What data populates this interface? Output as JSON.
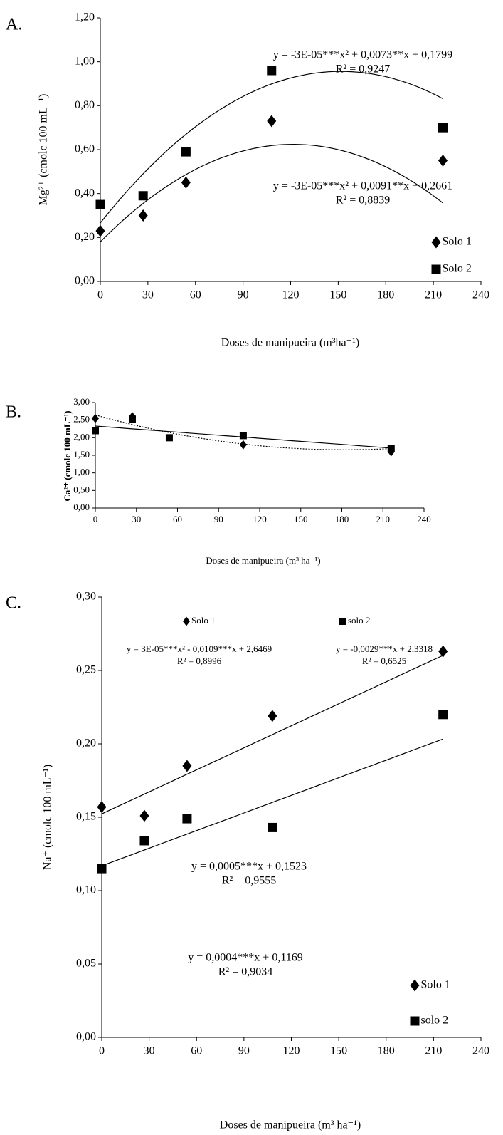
{
  "chart_data": [
    {
      "type": "scatter",
      "panel": "A.",
      "ylabel": "Mg²⁺ (cmolc 100 mL⁻¹)",
      "xlabel": "Doses de manipueira (m³ha⁻¹)",
      "x": [
        0,
        27,
        54,
        108,
        216
      ],
      "xlim": [
        0,
        240
      ],
      "xticks": [
        0,
        30,
        60,
        90,
        120,
        150,
        180,
        210,
        240
      ],
      "ylim": [
        0,
        1.2
      ],
      "yticks": [
        {
          "value": 0,
          "label": "0,00"
        },
        {
          "value": 0.2,
          "label": "0,20"
        },
        {
          "value": 0.4,
          "label": "0,40"
        },
        {
          "value": 0.6,
          "label": "0,60"
        },
        {
          "value": 0.8,
          "label": "0,80"
        },
        {
          "value": 1.0,
          "label": "1,00"
        },
        {
          "value": 1.2,
          "label": "1,20"
        }
      ],
      "series": [
        {
          "name": "Solo 1",
          "marker": "diamond",
          "color": "#000000",
          "values": [
            0.23,
            0.3,
            0.45,
            0.73,
            0.55
          ],
          "fit": [
            -3e-05,
            0.0073,
            0.1799
          ],
          "line_style": "solid",
          "equation": "y = -3E-05***x² + 0,0073**x + 0,1799",
          "r2": "R² = 0,9247"
        },
        {
          "name": "Solo 2",
          "marker": "square",
          "color": "#000000",
          "values": [
            0.35,
            0.39,
            0.59,
            0.96,
            0.7
          ],
          "fit": [
            -3e-05,
            0.0091,
            0.2661
          ],
          "line_style": "solid",
          "equation": "y = -3E-05***x² + 0,0091**x + 0,2661",
          "r2": "R² = 0,8839"
        }
      ]
    },
    {
      "type": "scatter",
      "panel": "B.",
      "ylabel": "Ca²⁺ (cmolc 100 mL⁻¹)",
      "xlabel": "Doses de manipueira (m³ ha⁻¹)",
      "x": [
        0,
        27,
        54,
        108,
        216
      ],
      "xlim": [
        0,
        240
      ],
      "xticks": [
        0,
        30,
        60,
        90,
        120,
        150,
        180,
        210,
        240
      ],
      "ylim": [
        0,
        3.0
      ],
      "yticks": [
        {
          "value": 0,
          "label": "0,00"
        },
        {
          "value": 0.5,
          "label": "0,50"
        },
        {
          "value": 1.0,
          "label": "1,00"
        },
        {
          "value": 1.5,
          "label": "1,50"
        },
        {
          "value": 2.0,
          "label": "2,00"
        },
        {
          "value": 2.5,
          "label": "2,50"
        },
        {
          "value": 3.0,
          "label": "3,00"
        }
      ],
      "series": [
        {
          "name": "Solo 1",
          "marker": "diamond",
          "color": "#000000",
          "values": [
            2.55,
            2.6,
            null,
            1.8,
            1.6
          ],
          "fit": [
            3e-05,
            -0.0109,
            2.6469
          ],
          "line_style": "dotted",
          "equation": "y = 3E-05***x² - 0,0109***x + 2,6469",
          "r2": "R² = 0,8996"
        },
        {
          "name": "solo 2",
          "marker": "square",
          "color": "#000000",
          "values": [
            2.2,
            2.53,
            2.0,
            2.06,
            1.7
          ],
          "fit": [
            -0.0029,
            2.3318
          ],
          "line_style": "solid",
          "equation": "y = -0,0029***x + 2,3318",
          "r2": "R² = 0,6525"
        }
      ]
    },
    {
      "type": "scatter",
      "panel": "C.",
      "ylabel": "Na⁺ (cmolc 100 mL⁻¹)",
      "xlabel": "Doses de manipueira (m³ ha⁻¹)",
      "x": [
        0,
        27,
        54,
        108,
        216
      ],
      "xlim": [
        0,
        240
      ],
      "xticks": [
        0,
        30,
        60,
        90,
        120,
        150,
        180,
        210,
        240
      ],
      "ylim": [
        0,
        0.3
      ],
      "yticks": [
        {
          "value": 0,
          "label": "0,00"
        },
        {
          "value": 0.05,
          "label": "0,05"
        },
        {
          "value": 0.1,
          "label": "0,10"
        },
        {
          "value": 0.15,
          "label": "0,15"
        },
        {
          "value": 0.2,
          "label": "0,20"
        },
        {
          "value": 0.25,
          "label": "0,25"
        },
        {
          "value": 0.3,
          "label": "0,30"
        }
      ],
      "series": [
        {
          "name": "Solo 1",
          "marker": "diamond",
          "color": "#000000",
          "values": [
            0.157,
            0.151,
            0.185,
            0.219,
            0.263
          ],
          "fit": [
            0.0005,
            0.1523
          ],
          "line_style": "solid",
          "equation": "y = 0,0005***x + 0,1523",
          "r2": "R² = 0,9555"
        },
        {
          "name": "solo 2",
          "marker": "square",
          "color": "#000000",
          "values": [
            0.115,
            0.134,
            0.149,
            0.143,
            0.22
          ],
          "fit": [
            0.0004,
            0.1169
          ],
          "line_style": "solid",
          "equation": "y = 0,0004***x + 0,1169",
          "r2": "R² = 0,9034"
        }
      ]
    }
  ]
}
